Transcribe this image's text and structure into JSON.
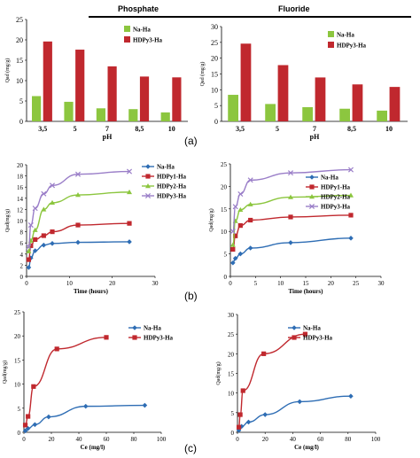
{
  "headers": {
    "phosphate": "Phosphate",
    "fluoride": "Fluoride"
  },
  "panel_labels": {
    "a": "(a)",
    "b": "(b)",
    "c": "(c)"
  },
  "colors": {
    "green": "#8cc63f",
    "red": "#c0282e",
    "blue": "#2e6db4",
    "red_line": "#c0282e",
    "green_line": "#8cc63f",
    "purple": "#9a7ec8"
  },
  "chart_data": [
    {
      "id": "a_phosphate",
      "type": "bar",
      "ylabel": "Qad (mg/g)",
      "xlabel": "pH",
      "ylim": [
        0,
        25
      ],
      "yticks": [
        0,
        5,
        10,
        15,
        20,
        25
      ],
      "categories": [
        "3,5",
        "5",
        "7",
        "8,5",
        "10"
      ],
      "series": [
        {
          "name": "Na-Ha",
          "values": [
            6.2,
            4.8,
            3.2,
            3.0,
            2.2
          ]
        },
        {
          "name": "HDPy3-Ha",
          "values": [
            19.6,
            17.6,
            13.5,
            11.0,
            10.8
          ]
        }
      ],
      "legend": "top-right",
      "grid": false
    },
    {
      "id": "a_fluoride",
      "type": "bar",
      "ylabel": "Qad (mg/g)",
      "xlabel": "pH",
      "ylim": [
        0,
        30
      ],
      "yticks": [
        0,
        5,
        10,
        15,
        20,
        25,
        30
      ],
      "categories": [
        "3,5",
        "5",
        "7",
        "8,5",
        "10"
      ],
      "series": [
        {
          "name": "Na-Ha",
          "values": [
            8.4,
            5.5,
            4.5,
            4.0,
            3.4
          ]
        },
        {
          "name": "HDPy3-Ha",
          "values": [
            24.6,
            17.8,
            13.9,
            11.7,
            10.9
          ]
        }
      ],
      "legend": "top-right",
      "grid": false
    },
    {
      "id": "b_phosphate",
      "type": "line",
      "ylabel": "Qad(mg/g)",
      "xlabel": "Time (hours)",
      "xlim": [
        0,
        30
      ],
      "ylim": [
        0,
        20
      ],
      "xticks": [
        0,
        10,
        20,
        30
      ],
      "yticks": [
        0,
        2,
        4,
        6,
        8,
        10,
        12,
        14,
        16,
        18,
        20
      ],
      "series": [
        {
          "name": "Na-Ha",
          "x": [
            0.5,
            1,
            2,
            4,
            6,
            12,
            24
          ],
          "y": [
            1.6,
            3.3,
            4.6,
            5.6,
            5.9,
            6.1,
            6.2
          ]
        },
        {
          "name": "HDPy1-Ha",
          "x": [
            0.5,
            1,
            2,
            4,
            6,
            12,
            24
          ],
          "y": [
            3.0,
            5.5,
            6.6,
            7.3,
            8.0,
            9.2,
            9.5
          ]
        },
        {
          "name": "HDPy2-Ha",
          "x": [
            0.5,
            1,
            2,
            4,
            6,
            12,
            24
          ],
          "y": [
            4.5,
            6.4,
            8.3,
            12.0,
            13.2,
            14.6,
            15.1
          ]
        },
        {
          "name": "HDPy3-Ha",
          "x": [
            0.5,
            1,
            2,
            4,
            6,
            12,
            24
          ],
          "y": [
            5.3,
            9.2,
            12.2,
            14.8,
            16.3,
            18.3,
            18.8
          ]
        }
      ],
      "legend": "top-right",
      "grid": false
    },
    {
      "id": "b_fluoride",
      "type": "line",
      "ylabel": "Qad(mg/g)",
      "xlabel": "Time (hours)",
      "xlim": [
        0,
        30
      ],
      "ylim": [
        0,
        25
      ],
      "xticks": [
        0,
        5,
        10,
        15,
        20,
        25,
        30
      ],
      "yticks": [
        0,
        5,
        10,
        15,
        20,
        25
      ],
      "series": [
        {
          "name": "Na-Ha",
          "x": [
            0.5,
            1,
            2,
            4,
            12,
            24
          ],
          "y": [
            3.0,
            4.0,
            5.0,
            6.3,
            7.5,
            8.5
          ]
        },
        {
          "name": "HDPy1-Ha",
          "x": [
            0.5,
            1,
            2,
            4,
            12,
            24
          ],
          "y": [
            6.0,
            9.0,
            11.3,
            12.5,
            13.2,
            13.6
          ]
        },
        {
          "name": "HDPy2-Ha",
          "x": [
            0.5,
            1,
            2,
            4,
            12,
            24
          ],
          "y": [
            7.0,
            12.3,
            14.8,
            16.0,
            17.6,
            18.0
          ]
        },
        {
          "name": "HDPy3-Ha",
          "x": [
            0.5,
            1,
            2,
            4,
            12,
            24
          ],
          "y": [
            10.0,
            15.5,
            18.3,
            21.4,
            23.0,
            23.7
          ]
        }
      ],
      "legend": "top-right",
      "grid": false
    },
    {
      "id": "c_phosphate",
      "type": "line",
      "ylabel": "Qad(mg/g)",
      "xlabel": "Ce (mg/l)",
      "xlim": [
        0,
        100
      ],
      "ylim": [
        0,
        25
      ],
      "xticks": [
        0,
        20,
        40,
        60,
        80,
        100
      ],
      "yticks": [
        0,
        5,
        10,
        15,
        20,
        25
      ],
      "series": [
        {
          "name": "Na-Ha",
          "x": [
            1,
            3,
            8,
            18,
            45,
            88
          ],
          "y": [
            0.3,
            0.8,
            1.6,
            3.2,
            5.4,
            5.6
          ]
        },
        {
          "name": "HDPy3-Ha",
          "x": [
            1,
            3,
            7,
            24,
            60
          ],
          "y": [
            1.5,
            3.3,
            9.5,
            17.3,
            19.7
          ]
        }
      ],
      "legend": "top-right",
      "grid": false
    },
    {
      "id": "c_fluoride",
      "type": "line",
      "ylabel": "Qad(mg/g)",
      "xlabel": "Ce (mg/l)",
      "xlim": [
        0,
        100
      ],
      "ylim": [
        0,
        30
      ],
      "xticks": [
        0,
        20,
        40,
        60,
        80,
        100
      ],
      "yticks": [
        0,
        5,
        10,
        15,
        20,
        25,
        30
      ],
      "series": [
        {
          "name": "Na-Ha",
          "x": [
            1,
            3,
            8,
            20,
            45,
            82
          ],
          "y": [
            0.5,
            1.5,
            2.6,
            4.5,
            7.8,
            9.2
          ]
        },
        {
          "name": "HDPy3-Ha",
          "x": [
            1,
            2,
            4,
            19,
            49
          ],
          "y": [
            1.3,
            4.5,
            10.6,
            20.0,
            25.0
          ]
        }
      ],
      "legend": "top-right",
      "grid": false
    }
  ]
}
